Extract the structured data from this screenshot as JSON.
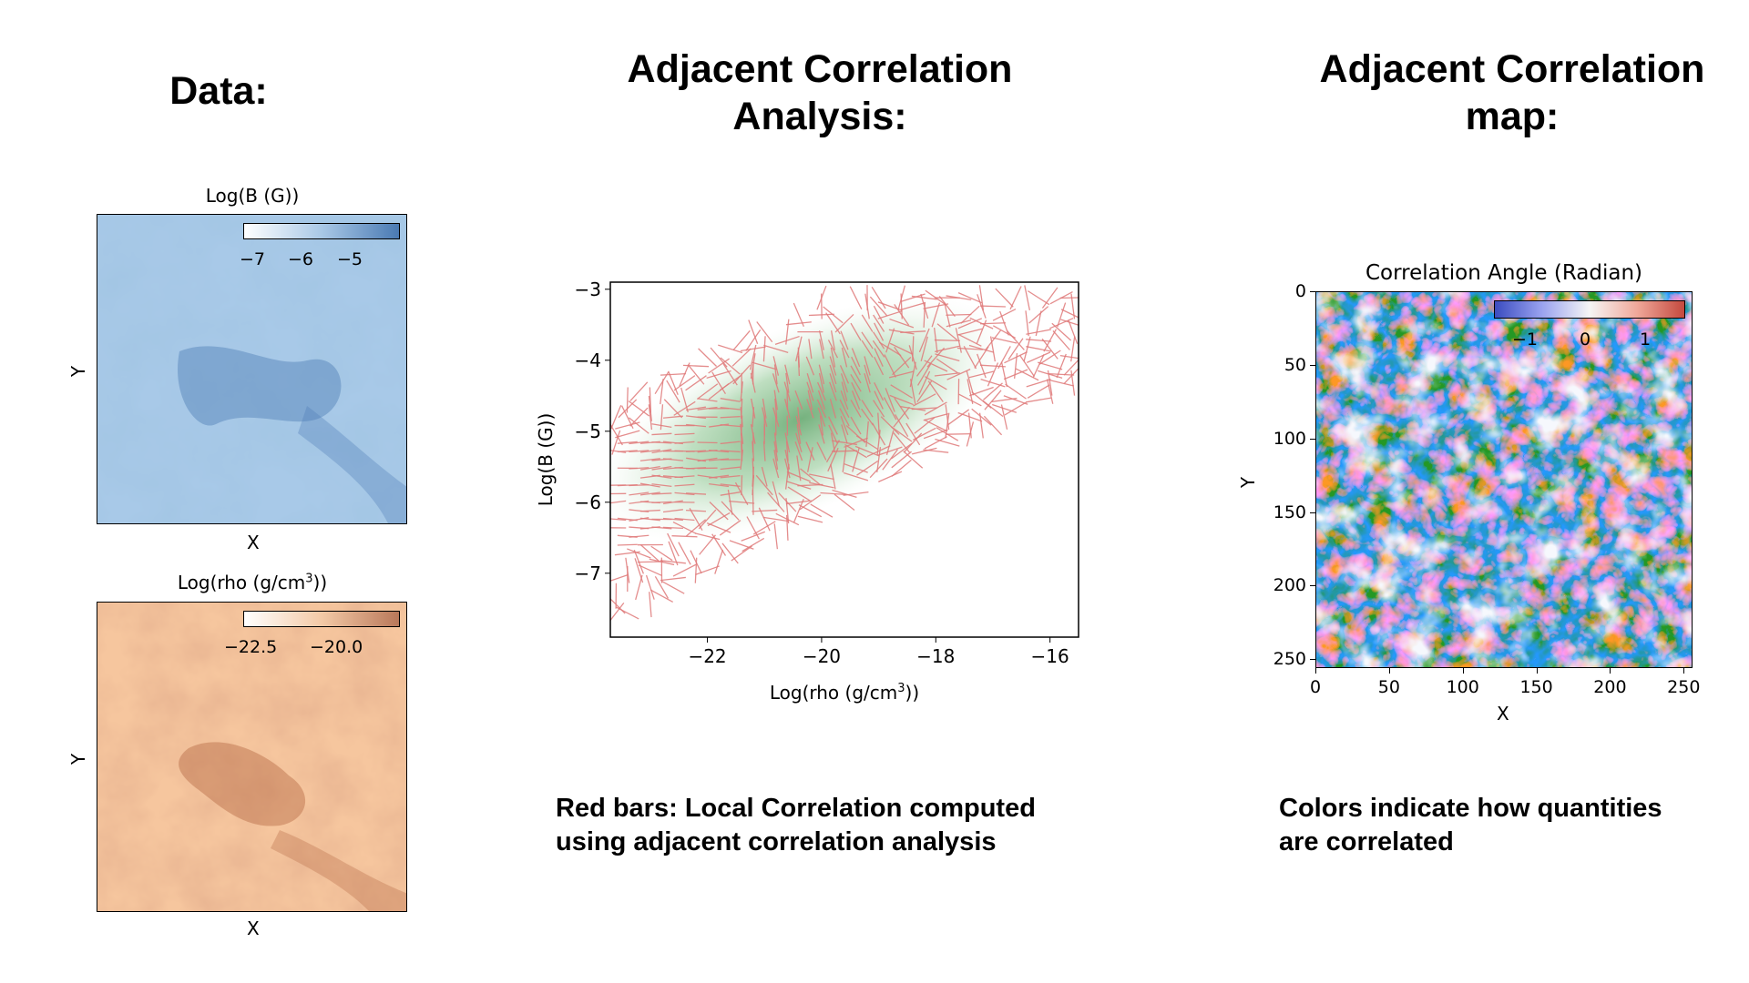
{
  "data_col": {
    "heading": "Data:"
  },
  "analysis_col": {
    "heading_line1": "Adjacent Correlation",
    "heading_line2": "Analysis:",
    "caption_line1": "Red bars: Local Correlation computed",
    "caption_line2": "using adjacent correlation analysis"
  },
  "map_col": {
    "heading_line1": "Adjacent Correlation",
    "heading_line2": "map:",
    "caption_line1": "Colors indicate how quantities",
    "caption_line2": "are correlated"
  },
  "b_panel": {
    "title": "Log(B (G))",
    "xlabel": "X",
    "ylabel": "Y",
    "colorbar_ticks": [
      "−7",
      "−6",
      "−5"
    ],
    "color_low": "#f4f8fc",
    "color_high": "#5b8fc5"
  },
  "rho_panel": {
    "title_prefix": "Log(rho (g/cm",
    "title_sup": "3",
    "title_suffix": "))",
    "xlabel": "X",
    "ylabel": "Y",
    "colorbar_ticks": [
      "−22.5",
      "−20.0"
    ],
    "color_low": "#fdf3ea",
    "color_high": "#c9805b"
  },
  "chart_data": {
    "type": "scatter",
    "title": "",
    "xlabel_prefix": "Log(rho (g/cm",
    "xlabel_sup": "3",
    "xlabel_suffix": "))",
    "ylabel": "Log(B (G))",
    "xlim": [
      -23.7,
      -15.5
    ],
    "ylim": [
      -7.9,
      -2.9
    ],
    "xticks": [
      -22,
      -20,
      -18,
      -16
    ],
    "xtick_labels": [
      "−22",
      "−20",
      "−18",
      "−16"
    ],
    "yticks": [
      -3,
      -4,
      -5,
      -6,
      -7
    ],
    "ytick_labels": [
      "−3",
      "−4",
      "−5",
      "−6",
      "−7"
    ],
    "bar_color": "#e07a7a",
    "density_color": "#7fbf86"
  },
  "corr_map": {
    "title": "Correlation Angle (Radian)",
    "xlabel": "X",
    "ylabel": "Y",
    "xtick_labels": [
      "0",
      "50",
      "100",
      "150",
      "200",
      "250"
    ],
    "ytick_labels": [
      "0",
      "50",
      "100",
      "150",
      "200",
      "250"
    ],
    "colorbar_ticks": [
      "−1",
      "0",
      "1"
    ],
    "color_low": "#3a4cc0",
    "color_mid": "#f5f5f5",
    "color_high": "#d9483b"
  }
}
